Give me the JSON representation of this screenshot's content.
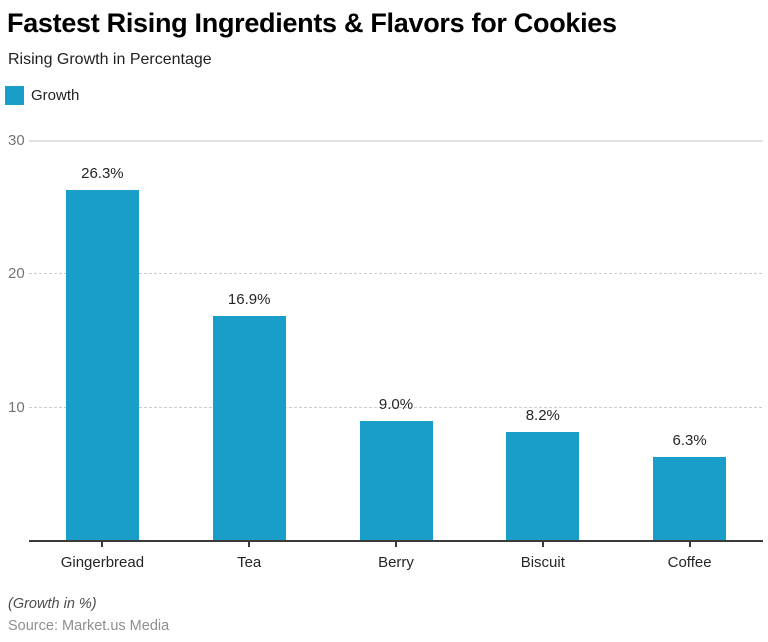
{
  "header": {
    "title": "Fastest Rising Ingredients & Flavors for Cookies",
    "subtitle": "Rising Growth in Percentage"
  },
  "legend": {
    "items": [
      {
        "label": "Growth",
        "color": "#189EC8"
      }
    ]
  },
  "chart_data": {
    "type": "bar",
    "title": "Fastest Rising Ingredients & Flavors for Cookies",
    "subtitle": "Rising Growth in Percentage",
    "categories": [
      "Gingerbread",
      "Tea",
      "Berry",
      "Biscuit",
      "Coffee"
    ],
    "series": [
      {
        "name": "Growth",
        "values": [
          26.3,
          16.9,
          9.0,
          8.2,
          6.3
        ]
      }
    ],
    "value_labels": [
      "26.3%",
      "16.9%",
      "9.0%",
      "8.2%",
      "6.3%"
    ],
    "xlabel": "",
    "ylabel": "",
    "ylim": [
      0,
      30
    ],
    "yticks": [
      10,
      20,
      30
    ],
    "grid": true,
    "legend_position": "top-left",
    "bar_color": "#189EC8"
  },
  "footer": {
    "note": "(Growth in %)",
    "source": "Source: Market.us Media"
  }
}
